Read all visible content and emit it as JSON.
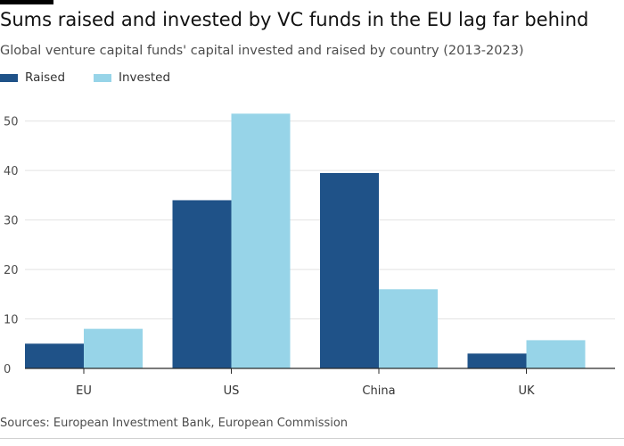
{
  "header": {
    "title": "Sums raised and invested by VC funds in the EU lag far behind",
    "subtitle": "Global venture capital funds' capital invested and raised by country (2013-2023)"
  },
  "footer": {
    "source": "Sources: European Investment Bank, European Commission"
  },
  "colors": {
    "raised": "#1f5288",
    "invested": "#97d4e8",
    "grid": "#e3e3e3",
    "axis": "#2b2b2b"
  },
  "chart_data": {
    "type": "bar",
    "categories": [
      "EU",
      "US",
      "China",
      "UK"
    ],
    "series": [
      {
        "name": "Raised",
        "values": [
          5,
          34,
          39.5,
          3
        ]
      },
      {
        "name": "Invested",
        "values": [
          8,
          51.5,
          16,
          5.7
        ]
      }
    ],
    "ylim": [
      0,
      55
    ],
    "yticks": [
      0,
      10,
      20,
      30,
      40,
      50
    ],
    "grid": true,
    "legend_position": "top-left"
  }
}
